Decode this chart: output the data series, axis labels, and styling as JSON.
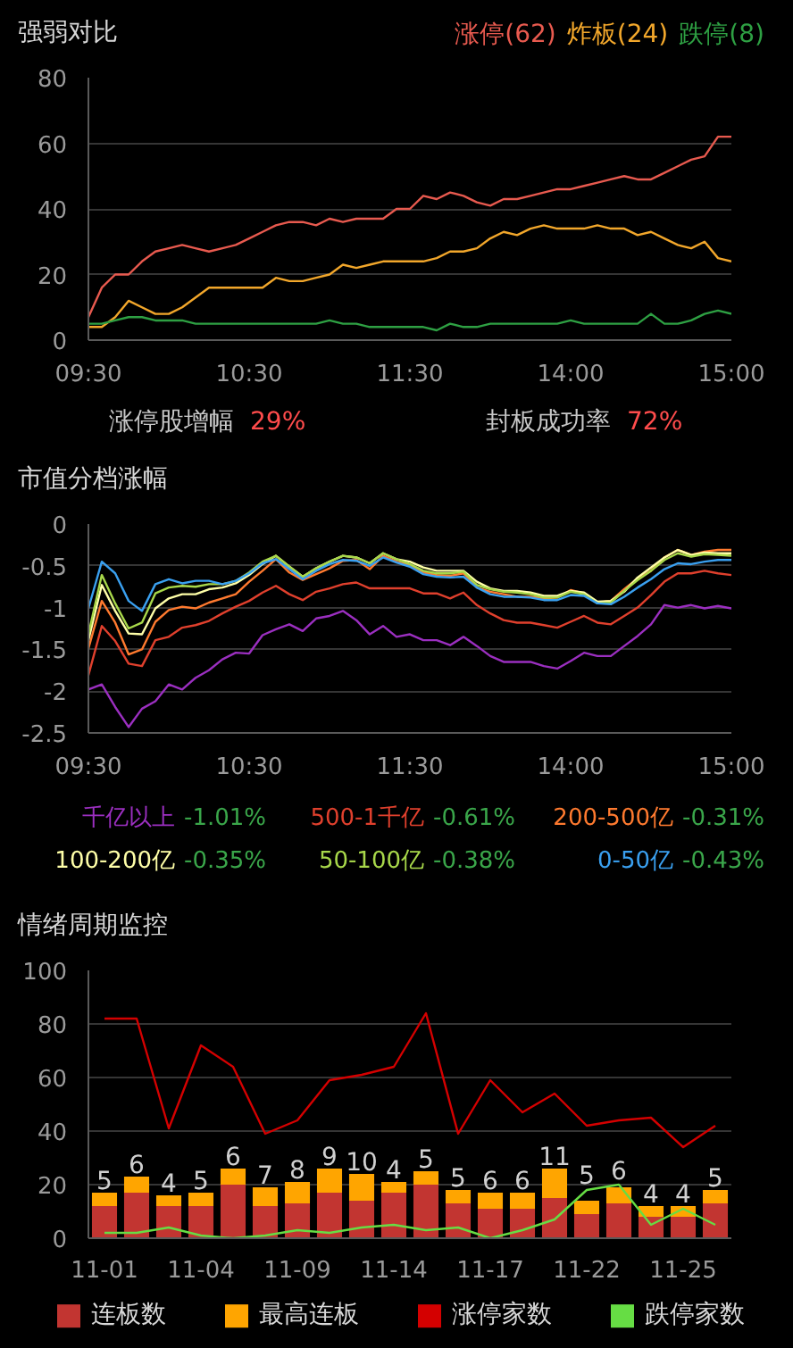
{
  "chart_data": [
    {
      "type": "line",
      "title": "强弱对比",
      "legend": "top right",
      "grid": "y",
      "ylim": [
        0,
        80
      ],
      "yticks": [
        0,
        20,
        40,
        60,
        80
      ],
      "categories": [
        "09:30",
        null,
        null,
        null,
        null,
        null,
        null,
        null,
        null,
        null,
        null,
        null,
        "10:30",
        null,
        null,
        null,
        null,
        null,
        null,
        null,
        null,
        null,
        null,
        null,
        "11:30",
        null,
        null,
        null,
        null,
        null,
        null,
        null,
        null,
        null,
        null,
        null,
        "14:00",
        null,
        null,
        null,
        null,
        null,
        null,
        null,
        null,
        null,
        null,
        null,
        "15:00"
      ],
      "series": [
        {
          "name": "涨停(62)",
          "color": "#e85a4f",
          "values": [
            7,
            16,
            20,
            20,
            24,
            27,
            28,
            29,
            28,
            27,
            28,
            29,
            31,
            33,
            35,
            36,
            36,
            35,
            37,
            36,
            37,
            37,
            37,
            40,
            40,
            44,
            43,
            45,
            44,
            42,
            41,
            43,
            43,
            44,
            45,
            46,
            46,
            47,
            48,
            49,
            50,
            49,
            49,
            51,
            53,
            55,
            56,
            62,
            62
          ]
        },
        {
          "name": "炸板(24)",
          "color": "#f2a72b",
          "values": [
            4,
            4,
            7,
            12,
            10,
            8,
            8,
            10,
            13,
            16,
            16,
            16,
            16,
            16,
            19,
            18,
            18,
            19,
            20,
            23,
            22,
            23,
            24,
            24,
            24,
            24,
            25,
            27,
            27,
            28,
            31,
            33,
            32,
            34,
            35,
            34,
            34,
            34,
            35,
            34,
            34,
            32,
            33,
            31,
            29,
            28,
            30,
            25,
            24
          ]
        },
        {
          "name": "跌停(8)",
          "color": "#2ea043",
          "values": [
            5,
            5,
            6,
            7,
            7,
            6,
            6,
            6,
            5,
            5,
            5,
            5,
            5,
            5,
            5,
            5,
            5,
            5,
            6,
            5,
            5,
            4,
            4,
            4,
            4,
            4,
            3,
            5,
            4,
            4,
            5,
            5,
            5,
            5,
            5,
            5,
            6,
            5,
            5,
            5,
            5,
            5,
            8,
            5,
            5,
            6,
            8,
            9,
            8
          ]
        }
      ],
      "annotations": [
        "涨停股增幅",
        "29%",
        "封板成功率",
        "72%"
      ]
    },
    {
      "type": "line",
      "title": "市值分档涨幅",
      "legend": "bottom",
      "grid": "y",
      "ylim": [
        -2.5,
        0
      ],
      "yticks": [
        0,
        -0.5,
        -1,
        -1.5,
        -2,
        -2.5
      ],
      "categories": [
        "09:30",
        null,
        null,
        null,
        null,
        null,
        null,
        null,
        null,
        null,
        null,
        null,
        "10:30",
        null,
        null,
        null,
        null,
        null,
        null,
        null,
        null,
        null,
        null,
        null,
        "11:30",
        null,
        null,
        null,
        null,
        null,
        null,
        null,
        null,
        null,
        null,
        null,
        "14:00",
        null,
        null,
        null,
        null,
        null,
        null,
        null,
        null,
        null,
        null,
        null,
        "15:00"
      ],
      "series": [
        {
          "name": "千亿以上",
          "color": "#9b2fc0",
          "values": [
            -1.98,
            -1.92,
            -2.19,
            -2.43,
            -2.21,
            -2.12,
            -1.92,
            -1.98,
            -1.84,
            -1.75,
            -1.62,
            -1.54,
            -1.55,
            -1.33,
            -1.26,
            -1.2,
            -1.28,
            -1.13,
            -1.1,
            -1.04,
            -1.15,
            -1.32,
            -1.22,
            -1.35,
            -1.32,
            -1.39,
            -1.39,
            -1.45,
            -1.35,
            -1.46,
            -1.58,
            -1.65,
            -1.65,
            -1.65,
            -1.7,
            -1.73,
            -1.64,
            -1.54,
            -1.58,
            -1.58,
            -1.46,
            -1.34,
            -1.2,
            -0.97,
            -1.0,
            -0.97,
            -1.01,
            -0.98,
            -1.01
          ]
        },
        {
          "name": "500-1千亿",
          "color": "#e0402d",
          "values": [
            -1.81,
            -1.22,
            -1.4,
            -1.67,
            -1.7,
            -1.39,
            -1.35,
            -1.24,
            -1.21,
            -1.16,
            -1.07,
            -0.99,
            -0.92,
            -0.82,
            -0.74,
            -0.84,
            -0.91,
            -0.81,
            -0.77,
            -0.72,
            -0.7,
            -0.77,
            -0.77,
            -0.77,
            -0.77,
            -0.83,
            -0.83,
            -0.89,
            -0.82,
            -0.97,
            -1.07,
            -1.15,
            -1.18,
            -1.18,
            -1.21,
            -1.24,
            -1.17,
            -1.1,
            -1.18,
            -1.2,
            -1.1,
            -1.0,
            -0.85,
            -0.69,
            -0.59,
            -0.59,
            -0.56,
            -0.59,
            -0.61
          ]
        },
        {
          "name": "200-500亿",
          "color": "#ff7a2f",
          "values": [
            -1.49,
            -0.92,
            -1.18,
            -1.56,
            -1.5,
            -1.17,
            -1.03,
            -0.99,
            -1.01,
            -0.94,
            -0.89,
            -0.84,
            -0.69,
            -0.56,
            -0.42,
            -0.58,
            -0.67,
            -0.6,
            -0.53,
            -0.44,
            -0.43,
            -0.54,
            -0.38,
            -0.45,
            -0.49,
            -0.58,
            -0.61,
            -0.62,
            -0.59,
            -0.76,
            -0.81,
            -0.84,
            -0.87,
            -0.87,
            -0.89,
            -0.88,
            -0.79,
            -0.83,
            -0.94,
            -0.92,
            -0.78,
            -0.65,
            -0.56,
            -0.4,
            -0.31,
            -0.37,
            -0.33,
            -0.31,
            -0.31
          ]
        },
        {
          "name": "100-200亿",
          "color": "#ffffa8",
          "values": [
            -1.39,
            -0.73,
            -1.04,
            -1.31,
            -1.32,
            -1.01,
            -0.89,
            -0.84,
            -0.84,
            -0.78,
            -0.76,
            -0.71,
            -0.61,
            -0.48,
            -0.38,
            -0.51,
            -0.63,
            -0.53,
            -0.45,
            -0.38,
            -0.4,
            -0.47,
            -0.35,
            -0.42,
            -0.45,
            -0.52,
            -0.56,
            -0.56,
            -0.56,
            -0.69,
            -0.77,
            -0.8,
            -0.8,
            -0.82,
            -0.86,
            -0.86,
            -0.8,
            -0.82,
            -0.93,
            -0.92,
            -0.81,
            -0.64,
            -0.52,
            -0.4,
            -0.31,
            -0.37,
            -0.34,
            -0.35,
            -0.35
          ]
        },
        {
          "name": "50-100亿",
          "color": "#a8d84a",
          "values": [
            -1.32,
            -0.61,
            -0.95,
            -1.25,
            -1.18,
            -0.83,
            -0.76,
            -0.74,
            -0.75,
            -0.72,
            -0.72,
            -0.68,
            -0.58,
            -0.45,
            -0.38,
            -0.51,
            -0.63,
            -0.53,
            -0.45,
            -0.38,
            -0.4,
            -0.47,
            -0.35,
            -0.42,
            -0.48,
            -0.56,
            -0.59,
            -0.59,
            -0.57,
            -0.73,
            -0.78,
            -0.81,
            -0.82,
            -0.84,
            -0.88,
            -0.88,
            -0.81,
            -0.84,
            -0.95,
            -0.94,
            -0.8,
            -0.67,
            -0.56,
            -0.43,
            -0.35,
            -0.39,
            -0.36,
            -0.37,
            -0.38
          ]
        },
        {
          "name": "0-50亿",
          "color": "#3aa0f0",
          "values": [
            -1.01,
            -0.45,
            -0.59,
            -0.92,
            -1.04,
            -0.72,
            -0.66,
            -0.71,
            -0.68,
            -0.68,
            -0.72,
            -0.68,
            -0.59,
            -0.47,
            -0.42,
            -0.54,
            -0.66,
            -0.56,
            -0.48,
            -0.43,
            -0.44,
            -0.5,
            -0.4,
            -0.46,
            -0.51,
            -0.6,
            -0.63,
            -0.64,
            -0.63,
            -0.76,
            -0.84,
            -0.87,
            -0.87,
            -0.88,
            -0.91,
            -0.91,
            -0.85,
            -0.86,
            -0.95,
            -0.96,
            -0.87,
            -0.76,
            -0.66,
            -0.54,
            -0.47,
            -0.48,
            -0.45,
            -0.43,
            -0.43
          ]
        }
      ],
      "annotations": [
        "-1.01%",
        "-0.61%",
        "-0.31%",
        "-0.35%",
        "-0.38%",
        "-0.43%"
      ]
    },
    {
      "type": "bar",
      "title": "情绪周期监控",
      "legend": "bottom",
      "grid": "y",
      "stacked": true,
      "ylim": [
        0,
        100
      ],
      "yticks": [
        0,
        20,
        40,
        60,
        80,
        100
      ],
      "categories": [
        "11-01",
        null,
        null,
        "11-04",
        null,
        null,
        "11-09",
        null,
        null,
        "11-14",
        null,
        null,
        "11-17",
        null,
        null,
        "11-22",
        null,
        null,
        "11-25",
        null
      ],
      "series": [
        {
          "name": "连板数",
          "color": "#c23531",
          "values": [
            12,
            17,
            12,
            12,
            20,
            12,
            13,
            17,
            14,
            17,
            20,
            13,
            11,
            11,
            15,
            9,
            13,
            8,
            8,
            13
          ]
        },
        {
          "name": "最高连板",
          "color": "#ffa500",
          "values": [
            5,
            6,
            4,
            5,
            6,
            7,
            8,
            9,
            10,
            4,
            5,
            5,
            6,
            6,
            11,
            5,
            6,
            4,
            4,
            5
          ],
          "value_labels": [
            "5",
            "6",
            "4",
            "5",
            "6",
            "7",
            "8",
            "9",
            "10",
            "4",
            "5",
            "5",
            "6",
            "6",
            "11",
            "5",
            "6",
            "4",
            "4",
            "5"
          ]
        },
        {
          "name": "涨停家数",
          "type": "line",
          "color": "#d40000",
          "values": [
            82,
            82,
            41,
            72,
            64,
            39,
            44,
            59,
            61,
            64,
            84,
            39,
            59,
            47,
            54,
            42,
            44,
            45,
            34,
            42
          ]
        },
        {
          "name": "跌停家数",
          "type": "line",
          "color": "#66dd44",
          "values": [
            2,
            2,
            4,
            1,
            0,
            1,
            3,
            2,
            4,
            5,
            3,
            4,
            0,
            3,
            7,
            18,
            20,
            5,
            11,
            5
          ]
        }
      ]
    }
  ]
}
